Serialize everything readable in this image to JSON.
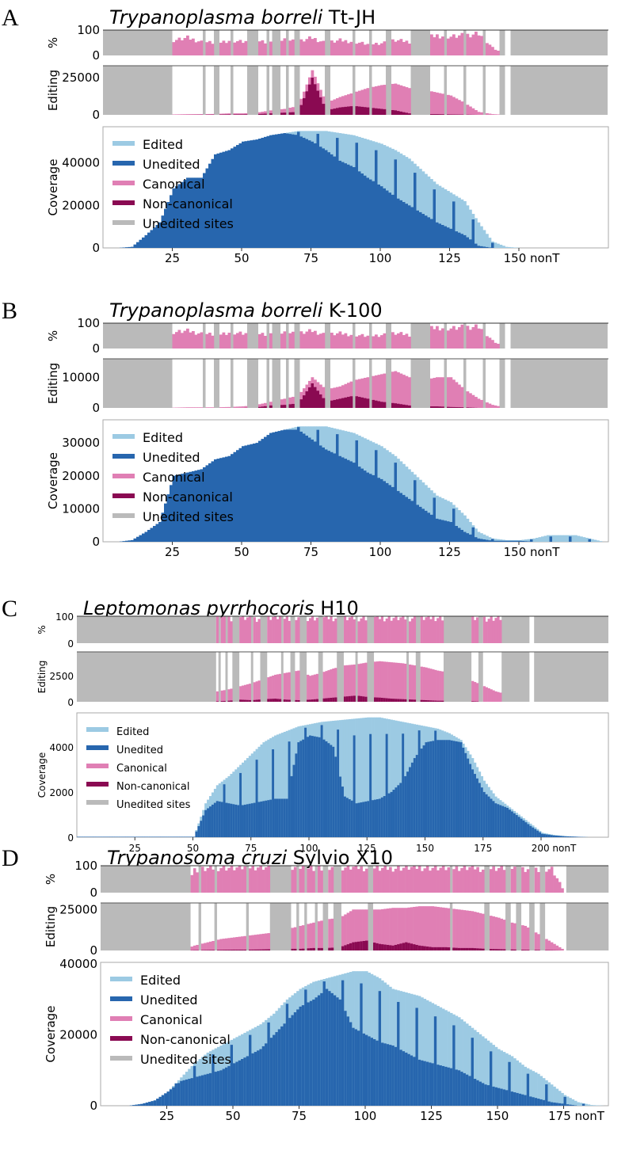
{
  "colors": {
    "edited": "#9ccae3",
    "unedited": "#2766ae",
    "canonical": "#e07fb4",
    "noncanonical": "#8a0a52",
    "unedited_sites": "#bababa"
  },
  "legend": [
    "Edited",
    "Unedited",
    "Canonical",
    "Non-canonical",
    "Unedited sites"
  ],
  "chart_data": [
    {
      "type": "bar",
      "letter": "A",
      "title_italic": "Trypanoplasma borreli",
      "title_rest": "Tt-JH",
      "step": 5,
      "xmax": 182,
      "ylabels": {
        "pct": "%",
        "edit": "Editing",
        "cov": "Coverage"
      },
      "xticks": [
        {
          "v": 25,
          "label": "25"
        },
        {
          "v": 50,
          "label": "50"
        },
        {
          "v": 75,
          "label": "75"
        },
        {
          "v": 100,
          "label": "100"
        },
        {
          "v": 125,
          "label": "125"
        },
        {
          "v": 150,
          "label": "150 nonT"
        }
      ],
      "pct_ticks": [
        100,
        0
      ],
      "edit_ticks": [
        25000,
        0
      ],
      "edit_ylim": [
        0,
        33000
      ],
      "cov_ticks": [
        40000,
        20000,
        0
      ],
      "cov_ylim": [
        0,
        57000
      ],
      "coverage_total": [
        0,
        0,
        500,
        6000,
        12000,
        28000,
        33000,
        33000,
        44000,
        46000,
        50000,
        51000,
        53000,
        54000,
        55000,
        55000,
        55000,
        54000,
        53000,
        51000,
        49000,
        46000,
        42000,
        36000,
        30000,
        26000,
        22000,
        12000,
        3000,
        500,
        0,
        0,
        0,
        0,
        0,
        0,
        0
      ],
      "coverage_unedited": [
        0,
        0,
        500,
        6000,
        12000,
        28000,
        33000,
        33000,
        44000,
        46000,
        50000,
        51000,
        53000,
        54000,
        53000,
        50000,
        46000,
        41000,
        38000,
        33000,
        29000,
        24000,
        20000,
        16000,
        12000,
        9000,
        6000,
        1000,
        0,
        0,
        0,
        0,
        0,
        0,
        0,
        0,
        0
      ],
      "editing_canonical": [
        0,
        0,
        0,
        0,
        0,
        300,
        500,
        500,
        600,
        1000,
        1000,
        1500,
        3000,
        4000,
        6000,
        30000,
        8000,
        12000,
        15000,
        18000,
        20000,
        21000,
        18000,
        17000,
        15000,
        13000,
        8000,
        2000,
        500,
        0,
        0,
        0,
        0,
        0,
        0,
        0,
        0
      ],
      "editing_noncanonical": [
        0,
        0,
        0,
        0,
        0,
        0,
        0,
        100,
        200,
        300,
        300,
        500,
        1000,
        1500,
        2000,
        25000,
        3000,
        5000,
        6000,
        5000,
        4000,
        3000,
        1000,
        500,
        500,
        300,
        200,
        0,
        0,
        0,
        0,
        0,
        0,
        0,
        0,
        0,
        0
      ],
      "percent_edited": [
        0,
        0,
        0,
        0,
        0,
        60,
        70,
        55,
        50,
        60,
        55,
        60,
        50,
        65,
        55,
        70,
        50,
        60,
        55,
        45,
        50,
        60,
        55,
        65,
        80,
        75,
        80,
        90,
        30,
        0,
        0,
        0,
        0,
        0,
        0,
        0,
        0
      ],
      "unedited_sites": [
        [
          0,
          25
        ],
        [
          36,
          37
        ],
        [
          40,
          42
        ],
        [
          46,
          47
        ],
        [
          52,
          56
        ],
        [
          59,
          60
        ],
        [
          61,
          64
        ],
        [
          66,
          67
        ],
        [
          69,
          71
        ],
        [
          80,
          82
        ],
        [
          90,
          91
        ],
        [
          96,
          97
        ],
        [
          102,
          104
        ],
        [
          111,
          118
        ],
        [
          123,
          124
        ],
        [
          130,
          131
        ],
        [
          137,
          138
        ],
        [
          143,
          145
        ],
        [
          147,
          182
        ]
      ]
    },
    {
      "type": "bar",
      "letter": "B",
      "title_italic": "Trypanoplasma borreli",
      "title_rest": "K-100",
      "step": 5,
      "xmax": 182,
      "ylabels": {
        "pct": "%",
        "edit": "Editing",
        "cov": "Coverage"
      },
      "xticks": [
        {
          "v": 25,
          "label": "25"
        },
        {
          "v": 50,
          "label": "50"
        },
        {
          "v": 75,
          "label": "75"
        },
        {
          "v": 100,
          "label": "100"
        },
        {
          "v": 125,
          "label": "125"
        },
        {
          "v": 150,
          "label": "150 nonT"
        }
      ],
      "pct_ticks": [
        100,
        0
      ],
      "edit_ticks": [
        10000,
        0
      ],
      "edit_ylim": [
        0,
        16000
      ],
      "cov_ticks": [
        30000,
        20000,
        10000,
        0
      ],
      "cov_ylim": [
        0,
        37000
      ],
      "coverage_total": [
        0,
        0,
        500,
        3000,
        6000,
        20000,
        21000,
        22000,
        25000,
        26000,
        29000,
        30000,
        33000,
        34000,
        35000,
        35000,
        35000,
        34000,
        33000,
        31000,
        29000,
        26000,
        22000,
        18000,
        14000,
        12000,
        8000,
        3000,
        1000,
        500,
        500,
        1000,
        2000,
        2000,
        2000,
        1000,
        0
      ],
      "coverage_unedited": [
        0,
        0,
        500,
        3000,
        6000,
        20000,
        21000,
        22000,
        25000,
        26000,
        29000,
        30000,
        33000,
        34000,
        34000,
        31000,
        28000,
        26000,
        24000,
        21000,
        19000,
        16000,
        13000,
        10000,
        7000,
        6000,
        3000,
        1000,
        300,
        300,
        300,
        0,
        0,
        0,
        0,
        0,
        0
      ],
      "editing_canonical": [
        0,
        0,
        0,
        0,
        0,
        100,
        200,
        200,
        200,
        300,
        500,
        1000,
        2000,
        3000,
        4000,
        10000,
        6000,
        7000,
        9000,
        10000,
        11000,
        12000,
        10000,
        9000,
        10000,
        10000,
        6000,
        3000,
        1000,
        0,
        0,
        0,
        0,
        0,
        0,
        0,
        0
      ],
      "editing_noncanonical": [
        0,
        0,
        0,
        0,
        0,
        0,
        0,
        0,
        0,
        0,
        0,
        200,
        800,
        1000,
        1500,
        8000,
        2000,
        3000,
        4000,
        3000,
        2000,
        1500,
        800,
        500,
        500,
        300,
        200,
        0,
        0,
        0,
        0,
        0,
        0,
        0,
        0,
        0,
        0
      ],
      "percent_edited": [
        0,
        0,
        0,
        0,
        0,
        65,
        70,
        60,
        55,
        65,
        60,
        60,
        55,
        65,
        60,
        70,
        55,
        60,
        55,
        50,
        55,
        60,
        55,
        70,
        85,
        80,
        85,
        90,
        30,
        0,
        0,
        0,
        0,
        0,
        0,
        0,
        0
      ],
      "unedited_sites": [
        [
          0,
          25
        ],
        [
          36,
          37
        ],
        [
          40,
          42
        ],
        [
          46,
          47
        ],
        [
          52,
          56
        ],
        [
          59,
          60
        ],
        [
          61,
          64
        ],
        [
          66,
          67
        ],
        [
          69,
          71
        ],
        [
          80,
          82
        ],
        [
          90,
          91
        ],
        [
          96,
          97
        ],
        [
          102,
          104
        ],
        [
          111,
          118
        ],
        [
          123,
          124
        ],
        [
          130,
          131
        ],
        [
          137,
          138
        ],
        [
          143,
          145
        ],
        [
          147,
          182
        ]
      ]
    },
    {
      "type": "bar",
      "letter": "C",
      "title_italic": "Leptomonas pyrrhocoris",
      "title_rest": "H10",
      "step": 5,
      "xmax": 229,
      "ylabels": {
        "pct": "%",
        "edit": "Editing",
        "cov": "Coverage"
      },
      "xticks": [
        {
          "v": 25,
          "label": "25"
        },
        {
          "v": 50,
          "label": "50"
        },
        {
          "v": 75,
          "label": "75"
        },
        {
          "v": 100,
          "label": "100"
        },
        {
          "v": 125,
          "label": "125"
        },
        {
          "v": 150,
          "label": "150"
        },
        {
          "v": 175,
          "label": "175"
        },
        {
          "v": 200,
          "label": "200 nonT"
        }
      ],
      "pct_ticks": [
        100,
        0
      ],
      "edit_ticks": [
        2500,
        0
      ],
      "edit_ylim": [
        0,
        4800
      ],
      "cov_ticks": [
        4000,
        2000,
        0
      ],
      "cov_ylim": [
        0,
        5500
      ],
      "coverage_total": [
        20,
        20,
        20,
        20,
        20,
        20,
        20,
        20,
        20,
        20,
        20,
        1500,
        2300,
        2700,
        3200,
        3700,
        4200,
        4500,
        4700,
        4900,
        5000,
        5100,
        5150,
        5200,
        5250,
        5300,
        5300,
        5200,
        5100,
        5000,
        4900,
        4800,
        4600,
        4300,
        3500,
        2500,
        1800,
        1400,
        1000,
        600,
        200,
        100,
        50,
        20,
        0,
        0,
        0
      ],
      "coverage_unedited": [
        20,
        20,
        20,
        20,
        20,
        20,
        20,
        20,
        20,
        20,
        20,
        1200,
        1600,
        1500,
        1400,
        1500,
        1600,
        1700,
        1700,
        4200,
        4500,
        4400,
        4000,
        1800,
        1500,
        1600,
        1700,
        2000,
        2500,
        3500,
        4200,
        4300,
        4300,
        4200,
        3000,
        2000,
        1500,
        1300,
        900,
        500,
        150,
        80,
        40,
        20,
        0,
        0,
        0
      ],
      "editing_canonical": [
        0,
        0,
        0,
        0,
        0,
        0,
        0,
        0,
        0,
        0,
        0,
        0,
        1000,
        1200,
        1500,
        1800,
        2200,
        2600,
        2800,
        3000,
        2500,
        2800,
        3200,
        3500,
        3600,
        3800,
        3900,
        3800,
        3700,
        3500,
        3300,
        3000,
        2800,
        2500,
        2000,
        1500,
        1000,
        700,
        0,
        0,
        0,
        0,
        0,
        0,
        0,
        0,
        0
      ],
      "editing_noncanonical": [
        0,
        0,
        0,
        0,
        0,
        0,
        0,
        0,
        0,
        0,
        0,
        0,
        50,
        100,
        200,
        150,
        250,
        300,
        200,
        150,
        200,
        300,
        400,
        500,
        600,
        450,
        400,
        300,
        250,
        200,
        150,
        100,
        100,
        50,
        50,
        0,
        0,
        0,
        0,
        0,
        0,
        0,
        0,
        0,
        0,
        0,
        0
      ],
      "percent_edited": [
        0,
        0,
        0,
        0,
        0,
        0,
        0,
        0,
        0,
        0,
        0,
        0,
        95,
        95,
        98,
        92,
        95,
        96,
        94,
        95,
        97,
        95,
        96,
        94,
        95,
        97,
        96,
        95,
        94,
        96,
        95,
        97,
        95,
        96,
        95,
        94,
        95,
        96,
        95,
        0,
        0,
        0,
        0,
        0,
        0,
        0,
        0
      ],
      "unedited_sites": [
        [
          0,
          60
        ],
        [
          61,
          62
        ],
        [
          64,
          65
        ],
        [
          67,
          70
        ],
        [
          75,
          76
        ],
        [
          79,
          82
        ],
        [
          88,
          89
        ],
        [
          92,
          94
        ],
        [
          96,
          99
        ],
        [
          104,
          106
        ],
        [
          112,
          115
        ],
        [
          120,
          121
        ],
        [
          125,
          128
        ],
        [
          142,
          143
        ],
        [
          146,
          148
        ],
        [
          158,
          170
        ],
        [
          173,
          175
        ],
        [
          183,
          195
        ],
        [
          197,
          229
        ]
      ]
    },
    {
      "type": "bar",
      "letter": "D",
      "title_italic": "Trypanosoma cruzi",
      "title_rest": "Sylvio X10",
      "step": 5,
      "xmax": 192,
      "ylabels": {
        "pct": "%",
        "edit": "Editing",
        "cov": "Coverage"
      },
      "xticks": [
        {
          "v": 25,
          "label": "25"
        },
        {
          "v": 50,
          "label": "50"
        },
        {
          "v": 75,
          "label": "75"
        },
        {
          "v": 100,
          "label": "100"
        },
        {
          "v": 125,
          "label": "125"
        },
        {
          "v": 150,
          "label": "150"
        },
        {
          "v": 175,
          "label": "175 nonT"
        }
      ],
      "pct_ticks": [
        100,
        0
      ],
      "edit_ticks": [
        25000,
        0
      ],
      "edit_ylim": [
        0,
        29000
      ],
      "cov_ticks": [
        40000,
        20000,
        0
      ],
      "cov_ylim": [
        0,
        40500
      ],
      "coverage_total": [
        0,
        0,
        0,
        500,
        1500,
        4000,
        8000,
        12000,
        15000,
        17000,
        19000,
        21000,
        23000,
        26000,
        30000,
        33000,
        35000,
        36000,
        37000,
        38000,
        38000,
        36000,
        33000,
        32000,
        31000,
        29000,
        27000,
        25000,
        22000,
        19000,
        16000,
        14000,
        11000,
        9000,
        6000,
        3000,
        1000,
        200,
        0
      ],
      "coverage_unedited": [
        0,
        0,
        0,
        500,
        1500,
        4000,
        7000,
        8000,
        9000,
        10000,
        12000,
        14000,
        16000,
        20000,
        24000,
        28000,
        30000,
        33000,
        30000,
        22000,
        20000,
        18000,
        17000,
        15000,
        13000,
        12000,
        11000,
        10000,
        8000,
        6000,
        5000,
        4000,
        3000,
        2000,
        1000,
        500,
        0,
        0,
        0
      ],
      "editing_canonical": [
        0,
        0,
        0,
        0,
        0,
        0,
        0,
        3000,
        5000,
        7000,
        8000,
        9000,
        10000,
        11000,
        13000,
        15000,
        17000,
        19000,
        20000,
        25000,
        25000,
        25000,
        26000,
        26000,
        27000,
        27000,
        26000,
        25000,
        24000,
        22000,
        20000,
        17000,
        15000,
        10000,
        5000,
        0,
        0,
        0,
        0
      ],
      "editing_noncanonical": [
        0,
        0,
        0,
        0,
        0,
        0,
        0,
        200,
        300,
        400,
        500,
        500,
        600,
        800,
        1000,
        1000,
        1500,
        1500,
        2000,
        5000,
        6000,
        4000,
        3000,
        5000,
        3000,
        2000,
        2000,
        1500,
        1500,
        1000,
        800,
        600,
        400,
        300,
        200,
        0,
        0,
        0,
        0
      ],
      "percent_edited": [
        0,
        0,
        0,
        0,
        0,
        0,
        0,
        85,
        90,
        95,
        92,
        94,
        95,
        90,
        93,
        95,
        92,
        90,
        94,
        95,
        93,
        90,
        92,
        94,
        95,
        93,
        90,
        92,
        94,
        88,
        90,
        92,
        85,
        90,
        88,
        0,
        0,
        0,
        0
      ],
      "unedited_sites": [
        [
          0,
          34
        ],
        [
          37,
          38
        ],
        [
          43,
          44
        ],
        [
          55,
          56
        ],
        [
          64,
          72
        ],
        [
          74,
          75
        ],
        [
          77,
          78
        ],
        [
          81,
          82
        ],
        [
          84,
          86
        ],
        [
          88,
          91
        ],
        [
          101,
          103
        ],
        [
          132,
          133
        ],
        [
          145,
          147
        ],
        [
          153,
          155
        ],
        [
          157,
          159
        ],
        [
          162,
          164
        ],
        [
          166,
          168
        ],
        [
          176,
          192
        ]
      ]
    }
  ]
}
